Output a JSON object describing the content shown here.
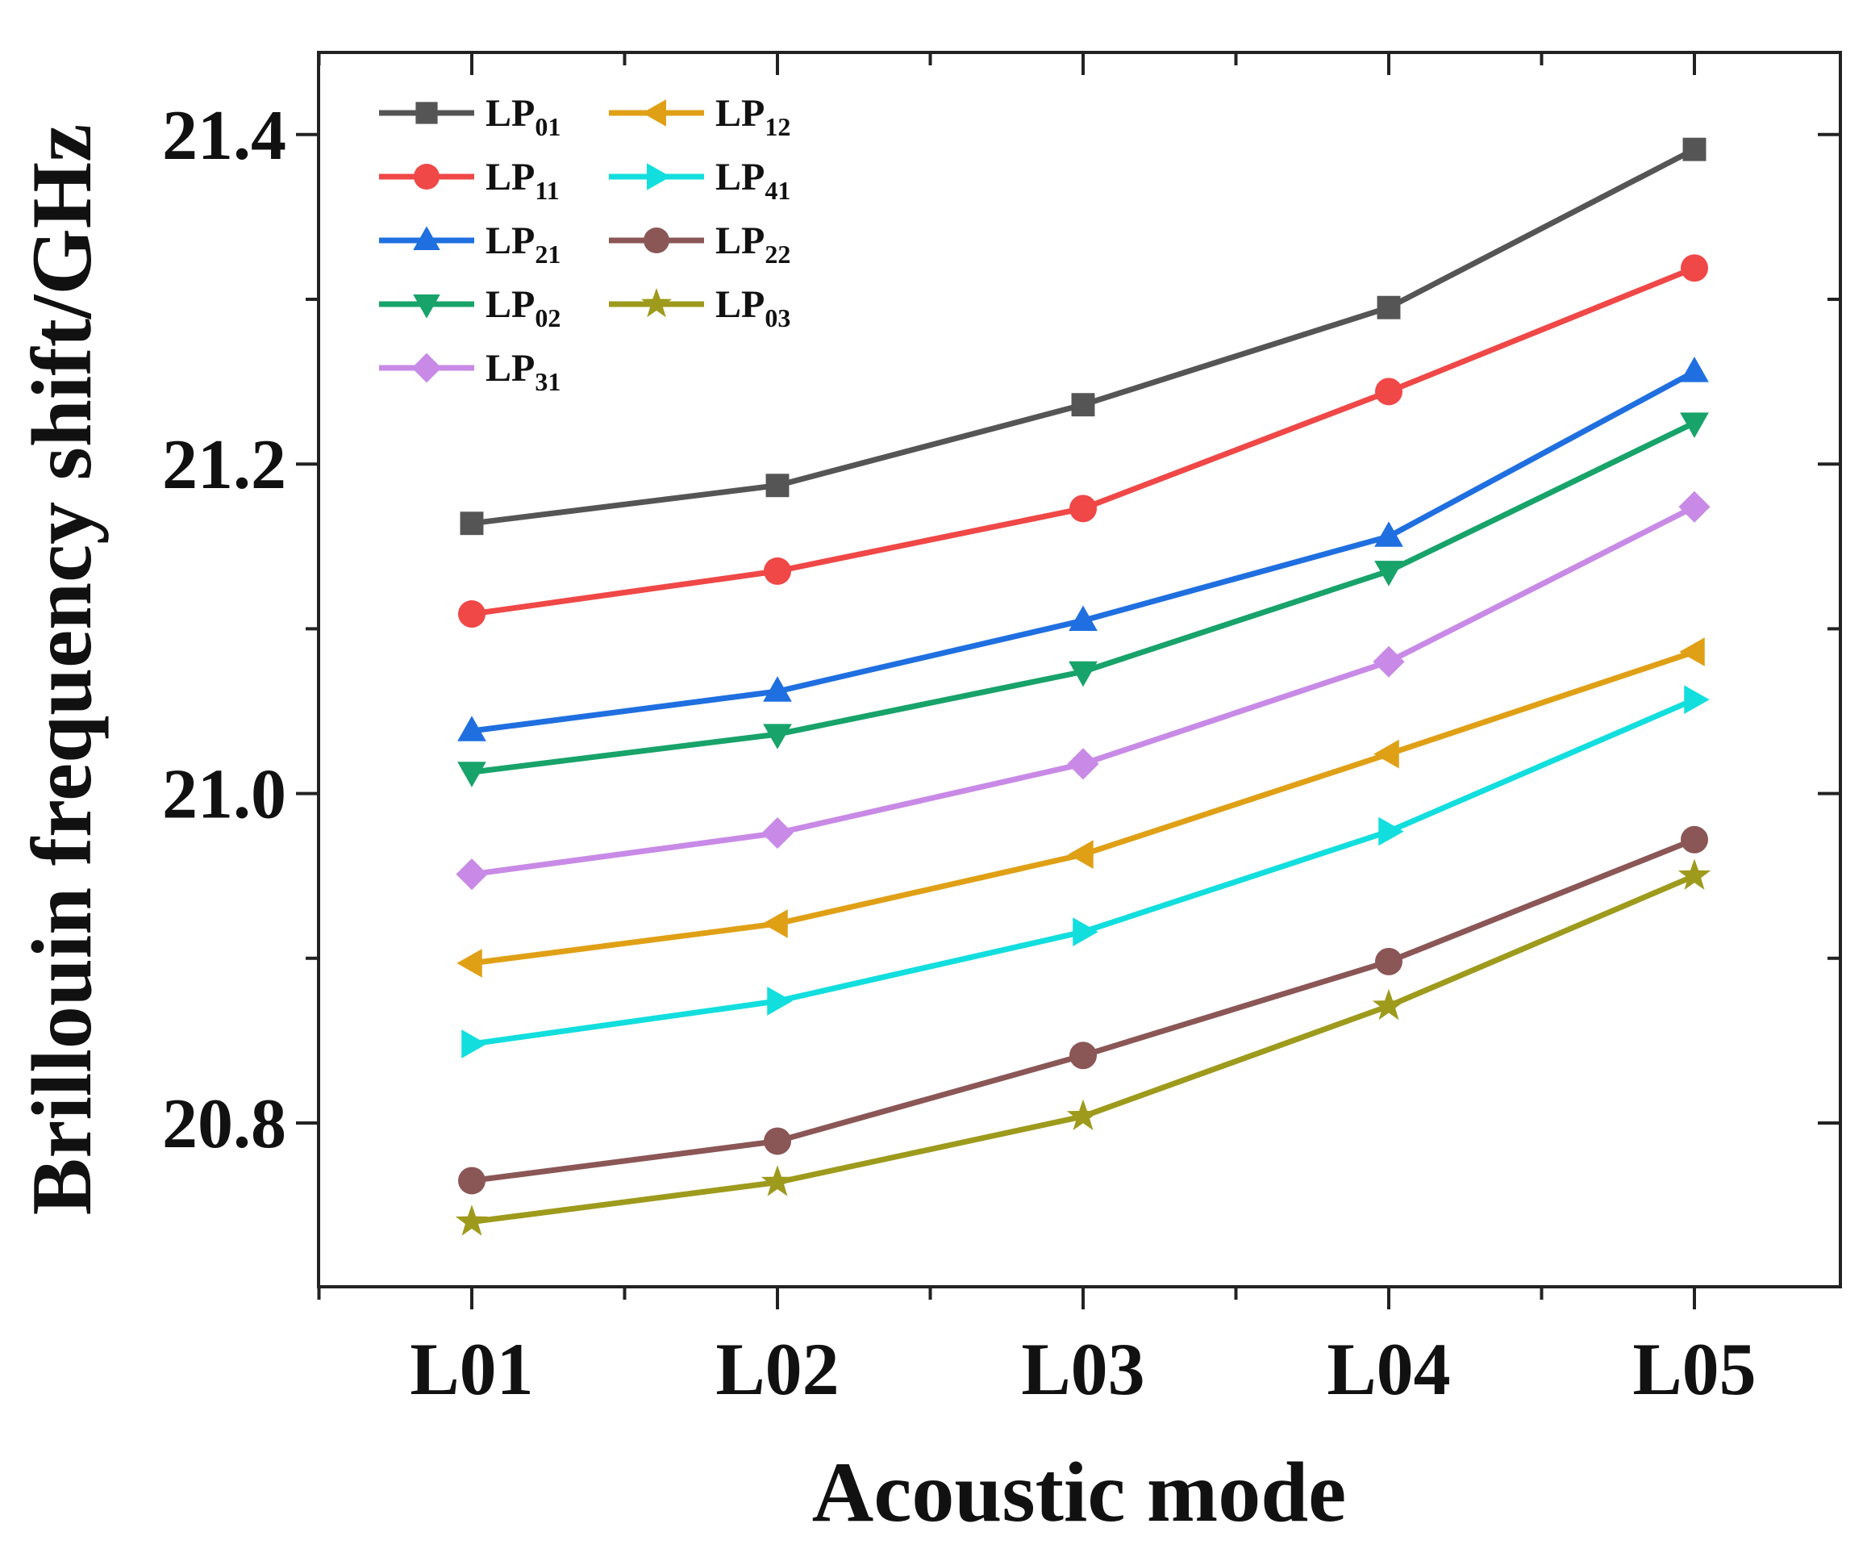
{
  "chart_data": {
    "type": "line",
    "title": "",
    "xlabel": "Acoustic mode",
    "ylabel": "Brillouin frequency shift/GHz",
    "categories": [
      "L01",
      "L02",
      "L03",
      "L04",
      "L05"
    ],
    "ylim": [
      20.7,
      21.45
    ],
    "yticks": [
      20.8,
      21.0,
      21.2,
      21.4
    ],
    "ytick_labels": [
      "20.8",
      "21.0",
      "21.2",
      "21.4"
    ],
    "grid": false,
    "legend_position": "top-left",
    "series": [
      {
        "name": "LP",
        "sub": "01",
        "color": "#555555",
        "marker": "square",
        "values": [
          21.164,
          21.187,
          21.236,
          21.295,
          21.391
        ]
      },
      {
        "name": "LP",
        "sub": "11",
        "color": "#f04747",
        "marker": "circle",
        "values": [
          21.109,
          21.135,
          21.173,
          21.244,
          21.319
        ]
      },
      {
        "name": "LP",
        "sub": "21",
        "color": "#1f6fe0",
        "marker": "triangle-up",
        "values": [
          21.038,
          21.062,
          21.105,
          21.156,
          21.256
        ]
      },
      {
        "name": "LP",
        "sub": "02",
        "color": "#17a36a",
        "marker": "triangle-down",
        "values": [
          21.013,
          21.036,
          21.074,
          21.135,
          21.225
        ]
      },
      {
        "name": "LP",
        "sub": "31",
        "color": "#c88ae6",
        "marker": "diamond",
        "values": [
          20.951,
          20.976,
          21.018,
          21.08,
          21.174
        ]
      },
      {
        "name": "LP",
        "sub": "12",
        "color": "#e0a016",
        "marker": "triangle-left",
        "values": [
          20.897,
          20.921,
          20.963,
          21.024,
          21.086
        ]
      },
      {
        "name": "LP",
        "sub": "41",
        "color": "#12dede",
        "marker": "triangle-right",
        "values": [
          20.848,
          20.874,
          20.916,
          20.977,
          21.057
        ]
      },
      {
        "name": "LP",
        "sub": "22",
        "color": "#8b5656",
        "marker": "circle",
        "values": [
          20.765,
          20.789,
          20.841,
          20.898,
          20.972
        ]
      },
      {
        "name": "LP",
        "sub": "03",
        "color": "#9e9a1c",
        "marker": "star",
        "values": [
          20.74,
          20.764,
          20.804,
          20.871,
          20.95
        ]
      }
    ]
  }
}
